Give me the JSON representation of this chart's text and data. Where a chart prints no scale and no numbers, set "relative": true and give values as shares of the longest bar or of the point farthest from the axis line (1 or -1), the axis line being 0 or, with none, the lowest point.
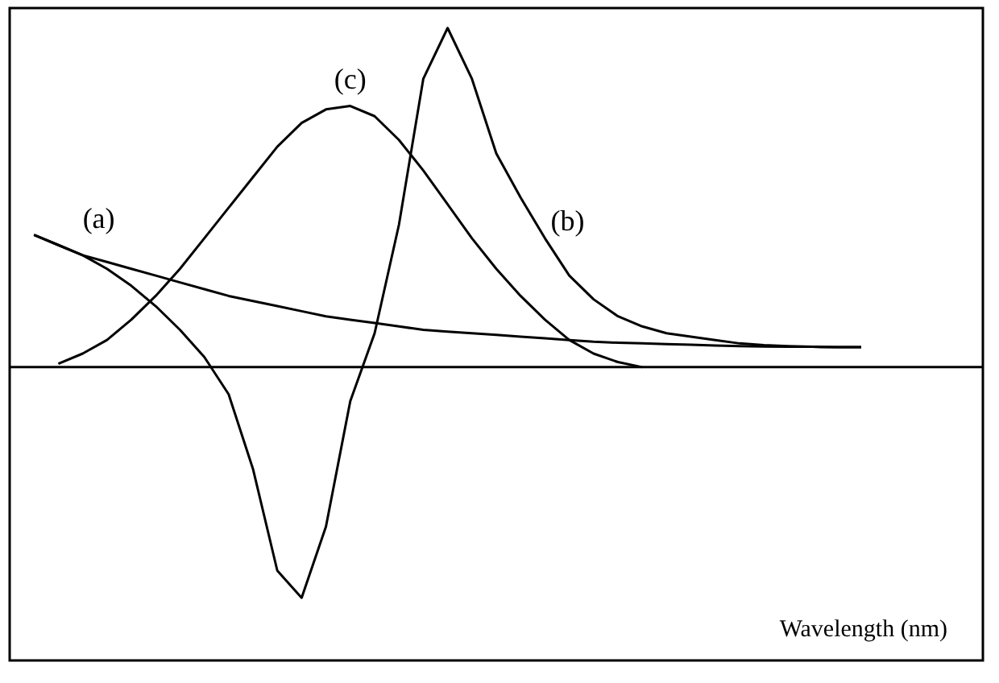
{
  "chart_data": {
    "type": "line",
    "relative": true,
    "xlabel": "Wavelength (nm)",
    "marker": "none",
    "line_style": "solid",
    "categories": [
      null,
      null,
      null,
      null,
      null,
      null,
      null,
      null,
      null,
      null,
      null,
      null,
      null,
      null,
      null,
      null,
      null,
      null,
      null,
      null,
      null,
      null,
      null,
      null,
      null,
      null,
      null,
      null,
      null,
      null,
      null,
      null,
      null,
      null,
      null,
      null,
      null,
      null,
      null,
      null,
      null
    ],
    "series": [
      {
        "name": "(a)",
        "color": "#000000",
        "values": [
          null,
          0.39,
          0.36,
          0.33,
          0.31,
          0.29,
          0.27,
          0.25,
          0.23,
          0.21,
          0.195,
          0.18,
          0.165,
          0.15,
          0.14,
          0.13,
          0.12,
          0.11,
          0.105,
          0.1,
          0.095,
          0.09,
          0.085,
          0.08,
          0.075,
          0.072,
          0.07,
          0.068,
          0.066,
          0.064,
          0.062,
          0.061,
          0.06,
          0.06,
          0.059,
          0.059,
          null,
          null,
          null,
          null,
          null
        ]
      },
      {
        "name": "(b)",
        "color": "#000000",
        "values": [
          null,
          0.39,
          0.36,
          0.33,
          0.29,
          0.24,
          0.18,
          0.11,
          0.03,
          -0.08,
          -0.3,
          -0.6,
          -0.68,
          -0.47,
          -0.1,
          0.1,
          0.42,
          0.85,
          1.0,
          0.85,
          0.63,
          0.5,
          0.38,
          0.27,
          0.2,
          0.15,
          0.12,
          0.1,
          0.09,
          0.08,
          0.07,
          0.065,
          0.062,
          0.06,
          0.059,
          0.059,
          null,
          null,
          null,
          null,
          null
        ]
      },
      {
        "name": "(c)",
        "color": "#000000",
        "values": [
          null,
          null,
          0.01,
          0.04,
          0.08,
          0.14,
          0.21,
          0.29,
          0.38,
          0.47,
          0.56,
          0.65,
          0.72,
          0.76,
          0.77,
          0.74,
          0.67,
          0.58,
          0.48,
          0.38,
          0.29,
          0.21,
          0.14,
          0.08,
          0.04,
          0.015,
          0.0,
          null,
          null,
          null,
          null,
          null,
          null,
          null,
          null,
          null,
          null,
          null,
          null,
          null,
          null
        ]
      }
    ]
  }
}
